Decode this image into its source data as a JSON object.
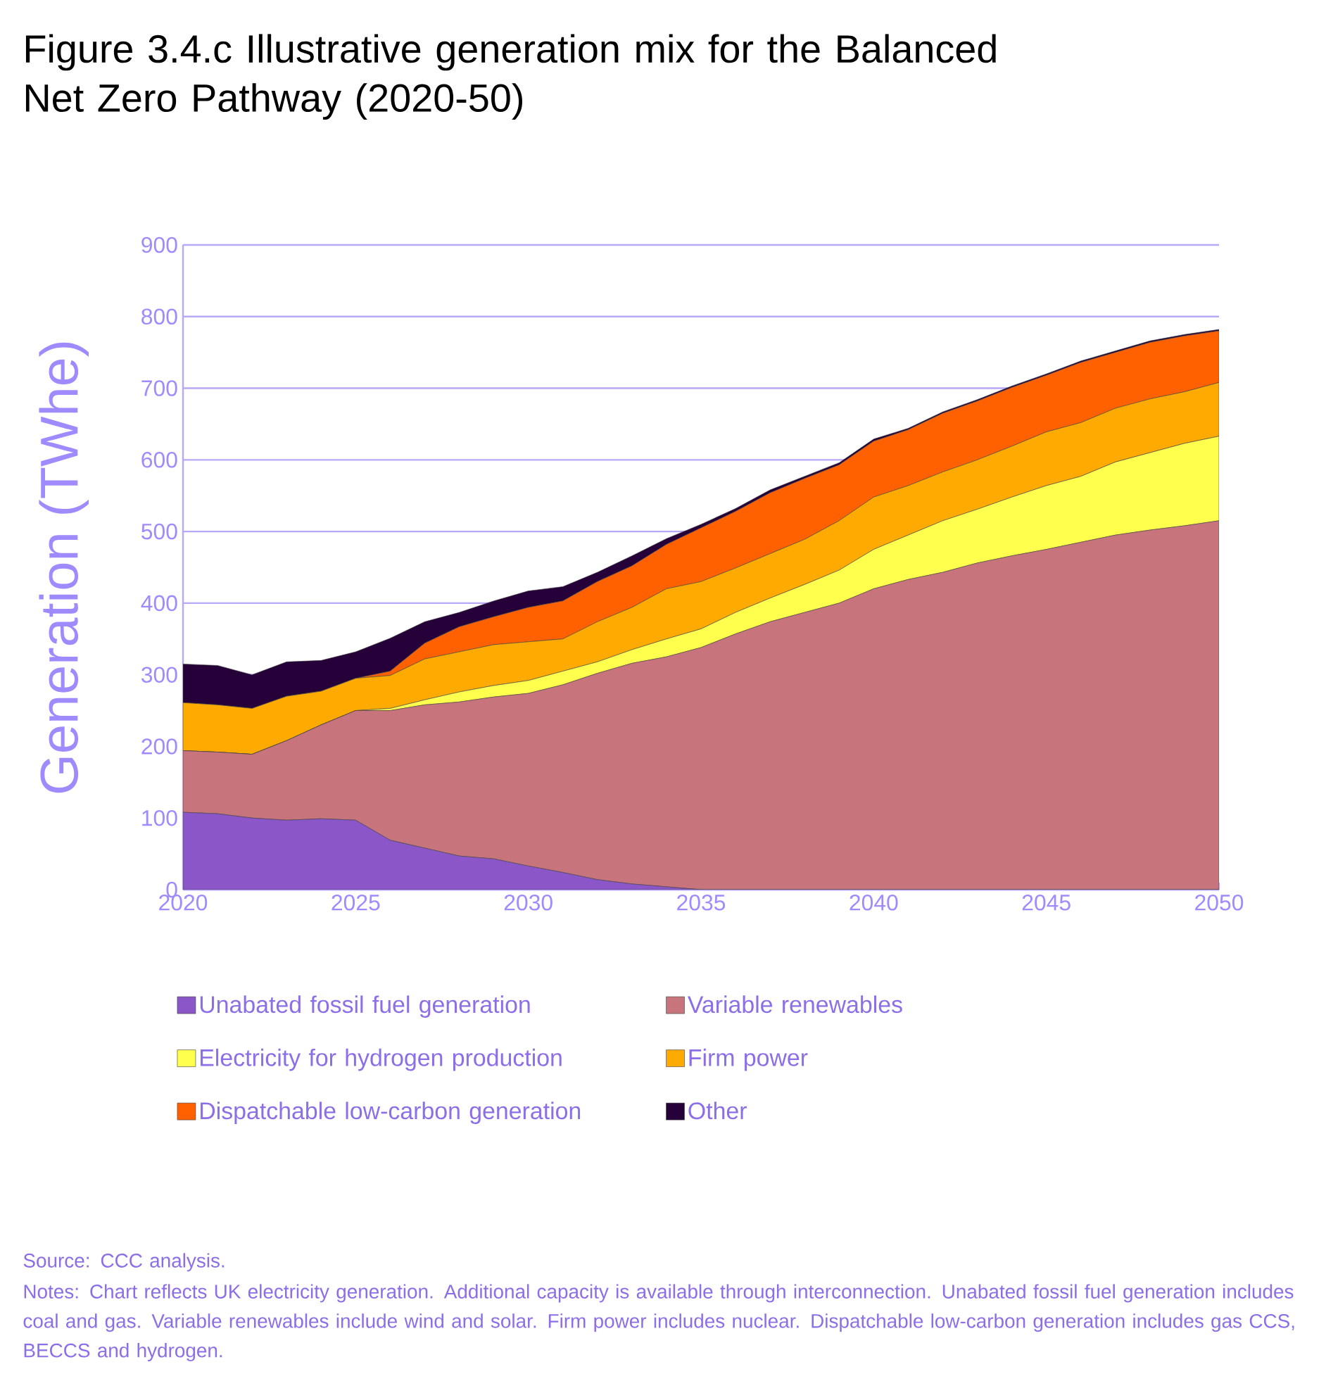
{
  "chart_data": {
    "type": "area",
    "stacked": true,
    "title": "Figure 3.4.c Illustrative generation mix for the Balanced Net Zero Pathway (2020-50)",
    "ylabel": "Generation  (TWhe)",
    "x": [
      2020,
      2021,
      2022,
      2023,
      2024,
      2025,
      2026,
      2027,
      2028,
      2029,
      2030,
      2031,
      2032,
      2033,
      2034,
      2035,
      2036,
      2037,
      2038,
      2039,
      2040,
      2041,
      2042,
      2043,
      2044,
      2045,
      2046,
      2047,
      2048,
      2049,
      2050
    ],
    "xlim": [
      2020,
      2050
    ],
    "xticks": [
      2020,
      2025,
      2030,
      2035,
      2040,
      2045,
      2050
    ],
    "ylim": [
      0,
      900
    ],
    "yticks": [
      0,
      100,
      200,
      300,
      400,
      500,
      600,
      700,
      800,
      900
    ],
    "grid": "y",
    "legend": "bottom",
    "series": [
      {
        "name": "Unabated fossil fuel generation",
        "color": "#8a56c8",
        "values": [
          108,
          106,
          100,
          97,
          99,
          97,
          69,
          58,
          47,
          43,
          33,
          24,
          14,
          8,
          4,
          0,
          0,
          0,
          0,
          0,
          0,
          0,
          0,
          0,
          0,
          0,
          0,
          0,
          0,
          0,
          0
        ]
      },
      {
        "name": "Variable renewables",
        "color": "#c8747c",
        "values": [
          86,
          86,
          89,
          111,
          131,
          153,
          181,
          200,
          215,
          226,
          241,
          262,
          288,
          308,
          321,
          338,
          357,
          374,
          387,
          400,
          420,
          433,
          443,
          456,
          466,
          475,
          485,
          495,
          502,
          508,
          515
        ]
      },
      {
        "name": "Electricity for hydrogen production",
        "color": "#ffff4d",
        "values": [
          0,
          0,
          0,
          0,
          0,
          0,
          3,
          7,
          14,
          16,
          18,
          19,
          16,
          19,
          25,
          26,
          30,
          33,
          39,
          46,
          55,
          62,
          72,
          75,
          82,
          89,
          92,
          102,
          108,
          115,
          118
        ]
      },
      {
        "name": "Firm power",
        "color": "#ffaa00",
        "values": [
          67,
          66,
          64,
          62,
          47,
          45,
          46,
          57,
          56,
          57,
          54,
          45,
          56,
          59,
          70,
          66,
          62,
          62,
          63,
          69,
          73,
          69,
          68,
          69,
          71,
          75,
          75,
          75,
          75,
          72,
          75
        ]
      },
      {
        "name": "Dispatchable low-carbon generation",
        "color": "#ff6000",
        "values": [
          0,
          0,
          0,
          0,
          0,
          0,
          6,
          22,
          35,
          39,
          48,
          53,
          56,
          58,
          62,
          75,
          79,
          85,
          85,
          78,
          78,
          78,
          82,
          82,
          82,
          79,
          84,
          78,
          79,
          78,
          72
        ]
      },
      {
        "name": "Other",
        "color": "#250039",
        "values": [
          54,
          55,
          47,
          48,
          43,
          37,
          46,
          30,
          20,
          22,
          23,
          20,
          13,
          14,
          8,
          5,
          4,
          4,
          3,
          3,
          3,
          2,
          2,
          2,
          2,
          2,
          2,
          2,
          2,
          2,
          2
        ]
      }
    ],
    "annotations": [
      "Source: CCC analysis.",
      "Notes: Chart reflects UK electricity generation. Additional capacity is available through interconnection. Unabated fossil fuel generation includes coal and gas. Variable renewables include wind and solar. Firm power includes nuclear. Dispatchable low-carbon generation includes gas CCS, BECCS and hydrogen."
    ]
  }
}
